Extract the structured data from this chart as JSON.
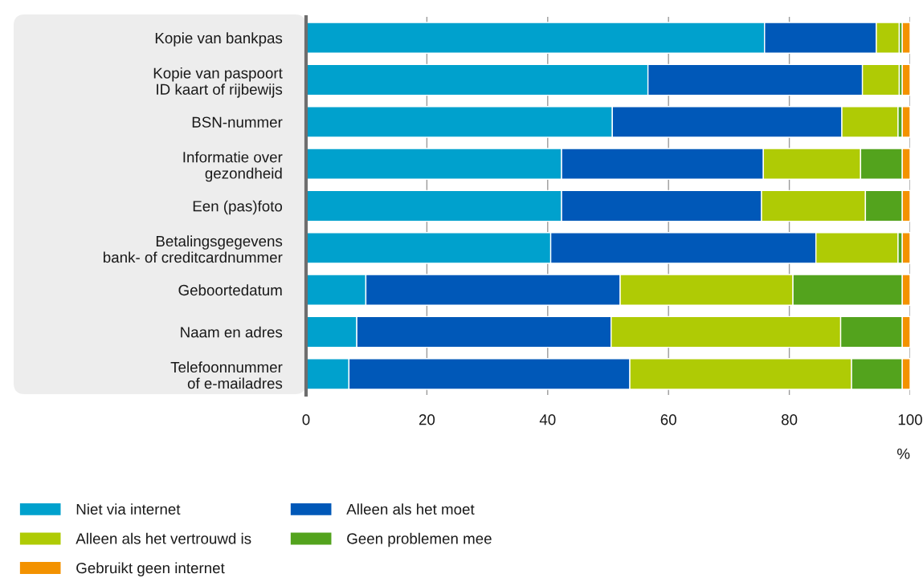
{
  "chart_data": {
    "type": "bar",
    "orientation": "horizontal",
    "stacked": true,
    "categories": [
      "Kopie van bankpas",
      "Kopie van paspoort\nID kaart of rijbewijs",
      "BSN-nummer",
      "Informatie over\ngezondheid",
      "Een (pas)foto",
      "Betalingsgegevens\nbank- of creditcardnummer",
      "Geboortedatum",
      "Naam en adres",
      "Telefoonnummer\nof e-mailadres"
    ],
    "series": [
      {
        "name": "Niet via internet",
        "color": "#00a1cd",
        "values": [
          75.9,
          56.6,
          50.7,
          42.3,
          42.3,
          40.5,
          9.9,
          8.4,
          7.1
        ]
      },
      {
        "name": "Alleen als het moet",
        "color": "#0058b8",
        "values": [
          18.5,
          35.5,
          38.0,
          33.4,
          33.1,
          43.9,
          42.1,
          42.1,
          46.5
        ]
      },
      {
        "name": "Alleen als het vertrouwd is",
        "color": "#afcb05",
        "values": [
          3.8,
          6.1,
          9.3,
          16.1,
          17.2,
          13.6,
          28.6,
          38.0,
          36.7
        ]
      },
      {
        "name": "Geen problemen mee",
        "color": "#53a31d",
        "values": [
          0.5,
          0.5,
          0.7,
          6.9,
          6.1,
          0.7,
          18.1,
          10.2,
          8.4
        ]
      },
      {
        "name": "Gebruikt geen internet",
        "color": "#f39200",
        "values": [
          1.3,
          1.3,
          1.3,
          1.3,
          1.3,
          1.3,
          1.3,
          1.3,
          1.3
        ]
      }
    ],
    "xlim": [
      0,
      100
    ],
    "xticks": [
      0,
      20,
      40,
      60,
      80,
      100
    ],
    "xlabel": "%",
    "grid": "x",
    "legend": "bottom"
  }
}
